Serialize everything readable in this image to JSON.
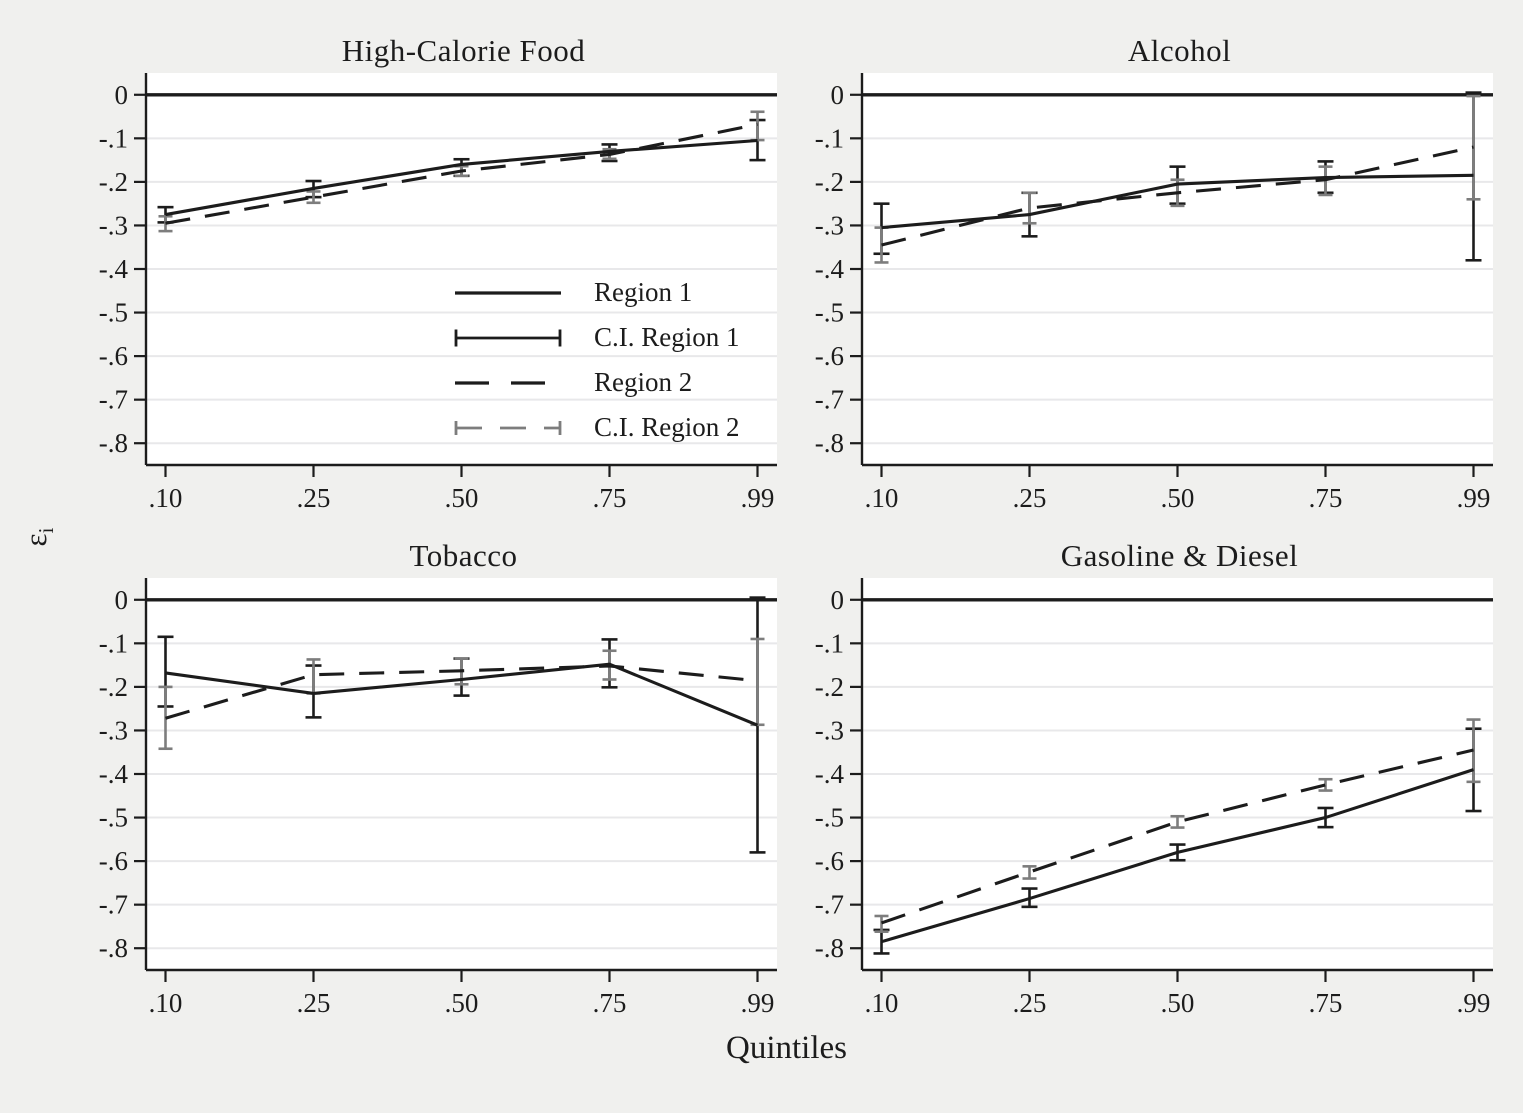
{
  "figure": {
    "xlabel": "Quintiles",
    "ylabel_base": "ε",
    "ylabel_sub": "i",
    "colors": {
      "dark": "#1c1c1c",
      "gray": "#7d7d7d",
      "background": "#f0f0ee",
      "plot_bg": "#ffffff",
      "gridline": "#e8e8ea"
    },
    "axes": {
      "x_tick_labels": [
        ".10",
        ".25",
        ".50",
        ".75",
        ".99"
      ],
      "y_tick_labels": [
        "0",
        "-.1",
        "-.2",
        "-.3",
        "-.4",
        "-.5",
        "-.6",
        "-.7",
        "-.8"
      ],
      "y_tick_values": [
        0,
        -0.1,
        -0.2,
        -0.3,
        -0.4,
        -0.5,
        -0.6,
        -0.7,
        -0.8
      ],
      "ylim": [
        0.05,
        -0.85
      ],
      "grid": true
    },
    "legend": {
      "position": "inside-first-panel-lower-right",
      "items": [
        {
          "label": "Region 1",
          "type": "line-solid-dark"
        },
        {
          "label": "C.I. Region 1",
          "type": "errorbar-solid-dark"
        },
        {
          "label": "Region 2",
          "type": "line-dashed-dark"
        },
        {
          "label": "C.I. Region 2",
          "type": "errorbar-dashed-gray"
        }
      ]
    }
  },
  "chart_data": [
    {
      "type": "line",
      "title": "High-Calorie Food",
      "x": [
        0.1,
        0.25,
        0.5,
        0.75,
        0.99
      ],
      "series": [
        {
          "name": "Region 1",
          "dash": false,
          "values": [
            -0.275,
            -0.215,
            -0.16,
            -0.13,
            -0.105
          ]
        },
        {
          "name": "Region 2",
          "dash": true,
          "values": [
            -0.295,
            -0.235,
            -0.175,
            -0.137,
            -0.068
          ]
        }
      ],
      "ci": [
        {
          "name": "C.I. Region 1",
          "gray": false,
          "hi": [
            -0.258,
            -0.198,
            -0.148,
            -0.114,
            -0.058
          ],
          "lo": [
            -0.293,
            -0.235,
            -0.186,
            -0.152,
            -0.15
          ]
        },
        {
          "name": "C.I. Region 2",
          "gray": true,
          "hi": [
            -0.279,
            -0.222,
            -0.164,
            -0.125,
            -0.039
          ],
          "lo": [
            -0.313,
            -0.248,
            -0.186,
            -0.147,
            -0.104
          ]
        }
      ]
    },
    {
      "type": "line",
      "title": "Alcohol",
      "x": [
        0.1,
        0.25,
        0.5,
        0.75,
        0.99
      ],
      "series": [
        {
          "name": "Region 1",
          "dash": false,
          "values": [
            -0.305,
            -0.275,
            -0.205,
            -0.19,
            -0.185
          ]
        },
        {
          "name": "Region 2",
          "dash": true,
          "values": [
            -0.345,
            -0.26,
            -0.225,
            -0.195,
            -0.12
          ]
        }
      ],
      "ci": [
        {
          "name": "C.I. Region 1",
          "gray": false,
          "hi": [
            -0.25,
            -0.225,
            -0.165,
            -0.153,
            0.005
          ],
          "lo": [
            -0.365,
            -0.325,
            -0.25,
            -0.225,
            -0.38
          ]
        },
        {
          "name": "C.I. Region 2",
          "gray": true,
          "hi": [
            -0.305,
            -0.225,
            -0.195,
            -0.165,
            -0.003
          ],
          "lo": [
            -0.385,
            -0.295,
            -0.255,
            -0.23,
            -0.24
          ]
        }
      ]
    },
    {
      "type": "line",
      "title": "Tobacco",
      "x": [
        0.1,
        0.25,
        0.5,
        0.75,
        0.99
      ],
      "series": [
        {
          "name": "Region 1",
          "dash": false,
          "values": [
            -0.168,
            -0.215,
            -0.183,
            -0.148,
            -0.288
          ]
        },
        {
          "name": "Region 2",
          "dash": true,
          "values": [
            -0.272,
            -0.172,
            -0.163,
            -0.152,
            -0.186
          ]
        }
      ],
      "ci": [
        {
          "name": "C.I. Region 1",
          "gray": false,
          "hi": [
            -0.085,
            -0.151,
            -0.135,
            -0.091,
            0.005
          ],
          "lo": [
            -0.245,
            -0.27,
            -0.22,
            -0.201,
            -0.58
          ]
        },
        {
          "name": "C.I. Region 2",
          "gray": true,
          "hi": [
            -0.2,
            -0.137,
            -0.135,
            -0.117,
            -0.09
          ],
          "lo": [
            -0.342,
            -0.215,
            -0.194,
            -0.183,
            -0.287
          ]
        }
      ]
    },
    {
      "type": "line",
      "title": "Gasoline & Diesel",
      "x": [
        0.1,
        0.25,
        0.5,
        0.75,
        0.99
      ],
      "series": [
        {
          "name": "Region 1",
          "dash": false,
          "values": [
            -0.785,
            -0.686,
            -0.58,
            -0.5,
            -0.39
          ]
        },
        {
          "name": "Region 2",
          "dash": true,
          "values": [
            -0.742,
            -0.625,
            -0.51,
            -0.425,
            -0.345
          ]
        }
      ],
      "ci": [
        {
          "name": "C.I. Region 1",
          "gray": false,
          "hi": [
            -0.758,
            -0.663,
            -0.562,
            -0.478,
            -0.296
          ],
          "lo": [
            -0.812,
            -0.705,
            -0.598,
            -0.522,
            -0.485
          ]
        },
        {
          "name": "C.I. Region 2",
          "gray": true,
          "hi": [
            -0.726,
            -0.612,
            -0.497,
            -0.412,
            -0.275
          ],
          "lo": [
            -0.762,
            -0.64,
            -0.523,
            -0.438,
            -0.418
          ]
        }
      ]
    }
  ]
}
